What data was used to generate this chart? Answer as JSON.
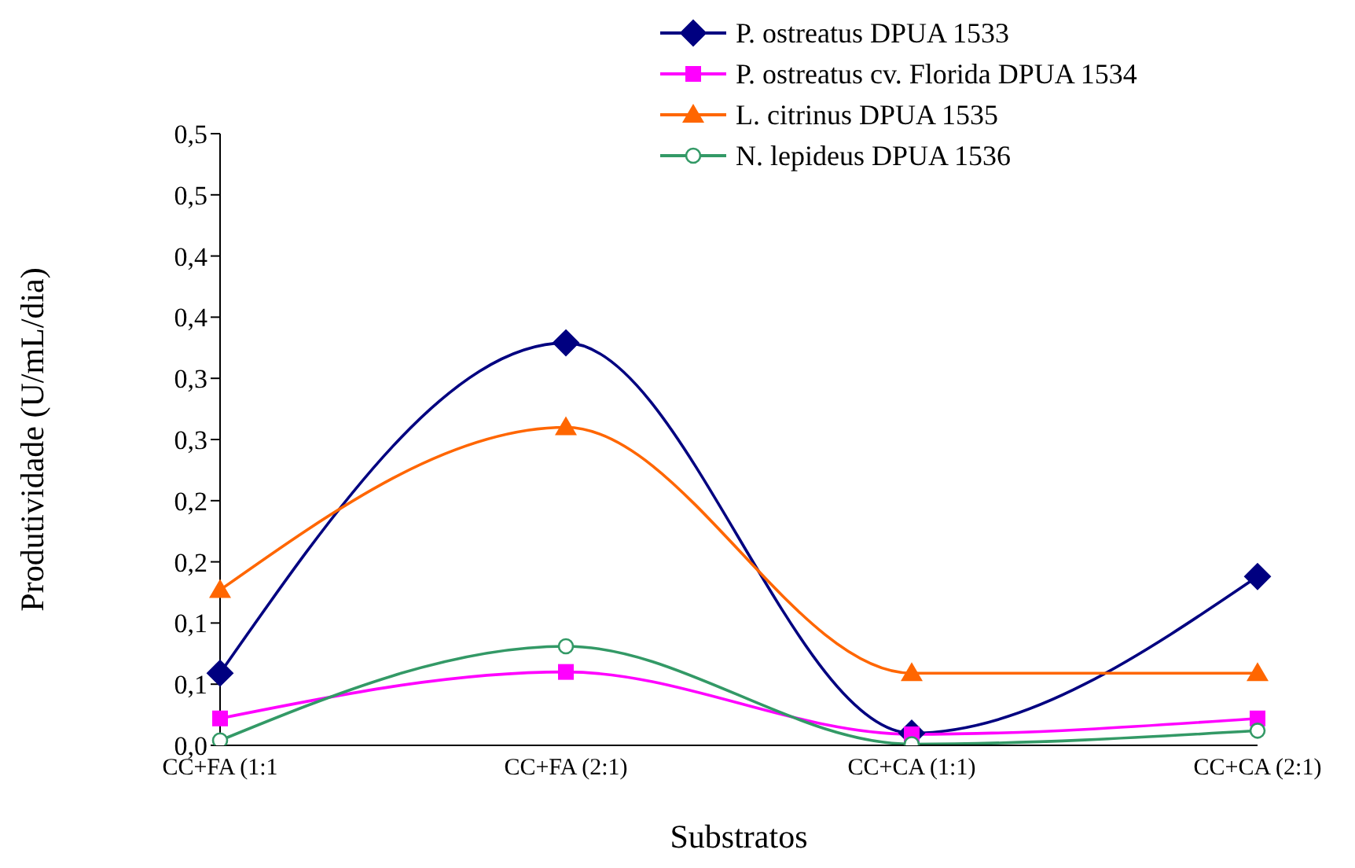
{
  "chart_data": {
    "type": "line",
    "xlabel": "Substratos",
    "ylabel": "Produtividade (U/mL/dia)",
    "categories": [
      "CC+FA (1:1",
      "CC+FA (2:1)",
      "CC+CA (1:1)",
      "CC+CA (2:1)"
    ],
    "series": [
      {
        "name": "P. ostreatus DPUA 1533",
        "color": "#000080",
        "marker": "diamond",
        "values": [
          0.059,
          0.329,
          0.01,
          0.138
        ]
      },
      {
        "name": "P. ostreatus cv. Florida DPUA 1534",
        "color": "#ff00ff",
        "marker": "square",
        "values": [
          0.022,
          0.06,
          0.009,
          0.022
        ]
      },
      {
        "name": "L. citrinus DPUA 1535",
        "color": "#ff6600",
        "marker": "triangle",
        "values": [
          0.127,
          0.26,
          0.059,
          0.059
        ]
      },
      {
        "name": "N. lepideus DPUA 1536",
        "color": "#339966",
        "marker": "circle",
        "values": [
          0.004,
          0.081,
          0.001,
          0.012
        ]
      }
    ],
    "ylim": [
      0,
      0.5
    ],
    "yticks": [
      {
        "value": 0,
        "label": "0,0"
      },
      {
        "value": 0.05,
        "label": "0,1"
      },
      {
        "value": 0.1,
        "label": "0,1"
      },
      {
        "value": 0.15,
        "label": "0,2"
      },
      {
        "value": 0.2,
        "label": "0,2"
      },
      {
        "value": 0.25,
        "label": "0,3"
      },
      {
        "value": 0.3,
        "label": "0,3"
      },
      {
        "value": 0.35,
        "label": "0,4"
      },
      {
        "value": 0.4,
        "label": "0,4"
      },
      {
        "value": 0.45,
        "label": "0,5"
      },
      {
        "value": 0.5,
        "label": "0,5"
      }
    ],
    "grid": false,
    "legend": "top right",
    "line_style": "solid"
  }
}
